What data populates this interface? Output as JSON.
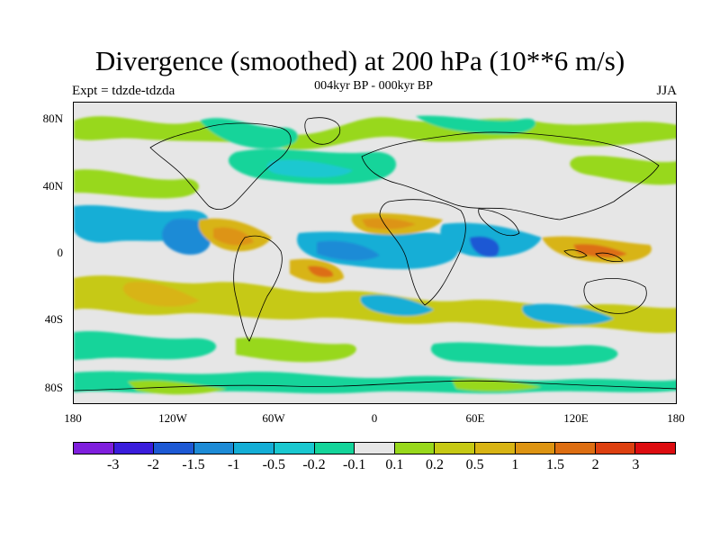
{
  "title": "Divergence (smoothed) at 200 hPa (10**6 m/s)",
  "subtitle": "004kyr BP - 000kyr BP",
  "left_label": "Expt = tdzde-tdzda",
  "right_label": "JJA",
  "lat_labels": [
    "80N",
    "40N",
    "0",
    "40S",
    "80S"
  ],
  "lon_labels": [
    "180",
    "120W",
    "60W",
    "0",
    "60E",
    "120E",
    "180"
  ],
  "colorbar": {
    "colors": [
      "#7f1fdd",
      "#3a1ddc",
      "#1d59d4",
      "#1d8bd6",
      "#14aed6",
      "#1ac8d0",
      "#14d49a",
      "#e6e6e6",
      "#98d81c",
      "#c6c914",
      "#d8b414",
      "#dd9412",
      "#dd6e12",
      "#dd4010",
      "#dd0c10"
    ],
    "labels": [
      "-3",
      "-2",
      "-1.5",
      "-1",
      "-0.5",
      "-0.2",
      "-0.1",
      "0.1",
      "0.2",
      "0.5",
      "1",
      "1.5",
      "2",
      "3"
    ]
  }
}
